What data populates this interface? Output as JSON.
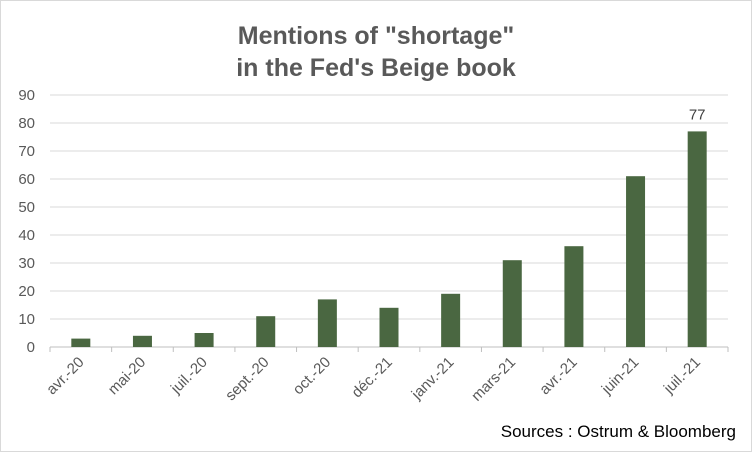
{
  "chart_data": {
    "type": "bar",
    "title_lines": [
      "Mentions of \"shortage\"",
      "in the Fed's Beige book"
    ],
    "categories": [
      "avr.-20",
      "mai-20",
      "juil.-20",
      "sept.-20",
      "oct.-20",
      "déc.-21",
      "janv.-21",
      "mars-21",
      "avr.-21",
      "juin-21",
      "juil.-21"
    ],
    "values": [
      3,
      4,
      5,
      11,
      17,
      14,
      19,
      31,
      36,
      61,
      77
    ],
    "data_labels": [
      {
        "index": 10,
        "text": "77"
      }
    ],
    "ylim": [
      0,
      90
    ],
    "yticks": [
      0,
      10,
      20,
      30,
      40,
      50,
      60,
      70,
      80,
      90
    ],
    "grid": true,
    "legend": "none",
    "bar_color": "#4a6741",
    "grid_color": "#d9d9d9",
    "source": "Sources : Ostrum & Bloomberg"
  }
}
